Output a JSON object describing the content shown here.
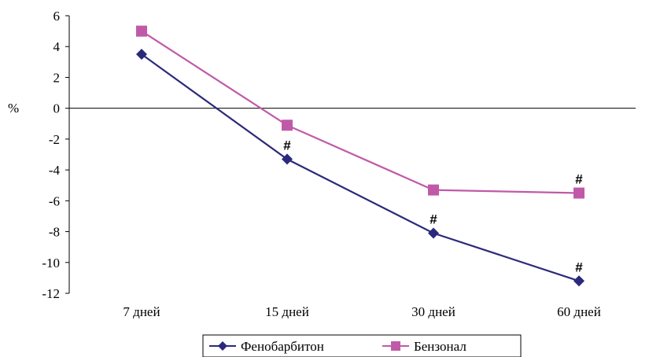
{
  "chart_data": {
    "type": "line",
    "categories": [
      "7 дней",
      "15 дней",
      "30 дней",
      "60 дней"
    ],
    "series": [
      {
        "name": "Фенобарбитон",
        "values": [
          3.5,
          -3.3,
          -8.1,
          -11.2
        ],
        "color": "#2b2a7a",
        "marker": "diamond"
      },
      {
        "name": "Бензонал",
        "values": [
          5.0,
          -1.1,
          -5.3,
          -5.5
        ],
        "color": "#c05aa8",
        "marker": "square"
      }
    ],
    "ylabel": "%",
    "ylim": [
      -12,
      6
    ],
    "yticks": [
      "6",
      "4",
      "2",
      "0",
      "-2",
      "-4",
      "-6",
      "-8",
      "-10",
      "-12"
    ],
    "grid": false,
    "legend": "bottom",
    "annotations": [
      {
        "text": "#",
        "category": "15 дней",
        "series": "Фенобарбитон"
      },
      {
        "text": "#",
        "category": "30 дней",
        "series": "Фенобарбитон"
      },
      {
        "text": "#",
        "category": "60 дней",
        "series": "Фенобарбитон"
      },
      {
        "text": "#",
        "category": "60 дней",
        "series": "Бензонал"
      }
    ]
  }
}
